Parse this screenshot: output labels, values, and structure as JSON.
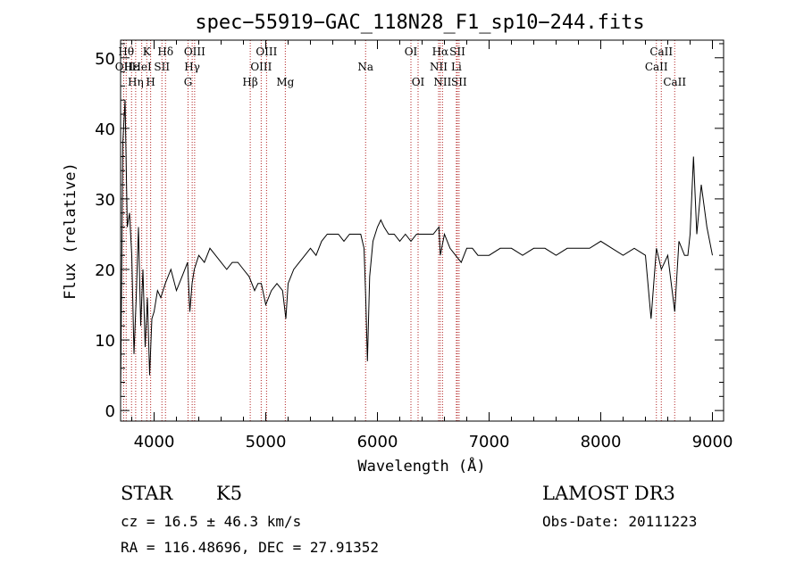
{
  "chart_data": {
    "type": "line",
    "title": "spec−55919−GAC_118N28_F1_sp10−244.fits",
    "xlabel": "Wavelength (Å)",
    "ylabel": "Flux (relative)",
    "xlim": [
      3700,
      9100
    ],
    "ylim": [
      -1.5,
      52.5
    ],
    "x_ticks": [
      4000,
      5000,
      6000,
      7000,
      8000,
      9000
    ],
    "y_ticks": [
      0,
      10,
      20,
      30,
      40,
      50
    ],
    "grid": false,
    "line_color": "#000000",
    "marker_color": "#b22222",
    "series": [
      {
        "name": "flux",
        "x": [
          3700,
          3720,
          3740,
          3760,
          3780,
          3800,
          3820,
          3840,
          3860,
          3880,
          3900,
          3920,
          3940,
          3960,
          3980,
          4000,
          4030,
          4060,
          4100,
          4150,
          4200,
          4250,
          4300,
          4320,
          4340,
          4360,
          4400,
          4450,
          4500,
          4550,
          4600,
          4650,
          4700,
          4750,
          4800,
          4850,
          4900,
          4930,
          4960,
          5000,
          5050,
          5100,
          5150,
          5180,
          5200,
          5250,
          5300,
          5350,
          5400,
          5450,
          5500,
          5550,
          5600,
          5650,
          5700,
          5750,
          5800,
          5850,
          5880,
          5895,
          5910,
          5930,
          5960,
          6000,
          6030,
          6060,
          6100,
          6150,
          6200,
          6250,
          6300,
          6350,
          6400,
          6450,
          6500,
          6550,
          6563,
          6600,
          6650,
          6700,
          6750,
          6800,
          6850,
          6900,
          6950,
          7000,
          7100,
          7200,
          7300,
          7400,
          7500,
          7600,
          7700,
          7800,
          7900,
          8000,
          8100,
          8200,
          8300,
          8400,
          8450,
          8498,
          8542,
          8600,
          8662,
          8700,
          8750,
          8780,
          8800,
          8830,
          8860,
          8900,
          8950,
          9000
        ],
        "y": [
          2,
          38,
          44,
          26,
          28,
          22,
          8,
          16,
          26,
          12,
          20,
          9,
          16,
          5,
          13,
          14,
          17,
          16,
          18,
          20,
          17,
          19,
          21,
          14,
          18,
          20,
          22,
          21,
          23,
          22,
          21,
          20,
          21,
          21,
          20,
          19,
          17,
          18,
          18,
          15,
          17,
          18,
          17,
          13,
          18,
          20,
          21,
          22,
          23,
          22,
          24,
          25,
          25,
          25,
          24,
          25,
          25,
          25,
          23,
          16,
          7,
          19,
          24,
          26,
          27,
          26,
          25,
          25,
          24,
          25,
          24,
          25,
          25,
          25,
          25,
          26,
          22,
          25,
          23,
          22,
          21,
          23,
          23,
          22,
          22,
          22,
          23,
          23,
          22,
          23,
          23,
          22,
          23,
          23,
          23,
          24,
          23,
          22,
          23,
          22,
          13,
          23,
          20,
          22,
          14,
          24,
          22,
          22,
          25,
          36,
          25,
          32,
          26,
          22
        ]
      }
    ],
    "lines": [
      {
        "name": "CaII",
        "x": 3727,
        "label": "OII",
        "row": 2
      },
      {
        "name": "CaII",
        "x": 3750,
        "label": "Hθ",
        "row": 1
      },
      {
        "name": "Heps",
        "x": 3798,
        "label": "Hε",
        "row": 2
      },
      {
        "name": "Heta",
        "x": 3835,
        "label": "Hη",
        "row": 3
      },
      {
        "name": "HeI",
        "x": 3889,
        "label": "HeI",
        "row": 2
      },
      {
        "name": "K",
        "x": 3934,
        "label": "K",
        "row": 1
      },
      {
        "name": "H",
        "x": 3969,
        "label": "H",
        "row": 3
      },
      {
        "name": "SII",
        "x": 4070,
        "label": "SII",
        "row": 2
      },
      {
        "name": "Hd",
        "x": 4102,
        "label": "Hδ",
        "row": 1
      },
      {
        "name": "G",
        "x": 4304,
        "label": "G",
        "row": 3
      },
      {
        "name": "Hg",
        "x": 4341,
        "label": "Hγ",
        "row": 2
      },
      {
        "name": "OIII",
        "x": 4363,
        "label": "OIII",
        "row": 1
      },
      {
        "name": "Hb",
        "x": 4861,
        "label": "Hβ",
        "row": 3
      },
      {
        "name": "OIII2",
        "x": 4959,
        "label": "OIII",
        "row": 2
      },
      {
        "name": "OIII3",
        "x": 5007,
        "label": "OIII",
        "row": 1
      },
      {
        "name": "Mg",
        "x": 5175,
        "label": "Mg",
        "row": 3
      },
      {
        "name": "Na",
        "x": 5894,
        "label": "Na",
        "row": 2
      },
      {
        "name": "OI",
        "x": 6300,
        "label": "OI",
        "row": 1
      },
      {
        "name": "OI2",
        "x": 6364,
        "label": "OI",
        "row": 3
      },
      {
        "name": "NII",
        "x": 6548,
        "label": "NII",
        "row": 2
      },
      {
        "name": "Ha",
        "x": 6563,
        "label": "Hα",
        "row": 1
      },
      {
        "name": "NII2",
        "x": 6583,
        "label": "NII",
        "row": 3
      },
      {
        "name": "Li",
        "x": 6707,
        "label": "Li",
        "row": 2
      },
      {
        "name": "SII2",
        "x": 6716,
        "label": "SII",
        "row": 1
      },
      {
        "name": "SII3",
        "x": 6731,
        "label": "SII",
        "row": 3
      },
      {
        "name": "CaT1",
        "x": 8498,
        "label": "CaII",
        "row": 2
      },
      {
        "name": "CaT2",
        "x": 8542,
        "label": "CaII",
        "row": 1
      },
      {
        "name": "CaT3",
        "x": 8662,
        "label": "CaII",
        "row": 3
      }
    ]
  },
  "info": {
    "class": "STAR",
    "subclass": "K5",
    "survey": "LAMOST DR3",
    "redshift_line": "cz = 16.5 ± 46.3 km/s",
    "obs_date": "Obs-Date: 20111223",
    "coords": "RA = 116.48696, DEC =  27.91352"
  }
}
